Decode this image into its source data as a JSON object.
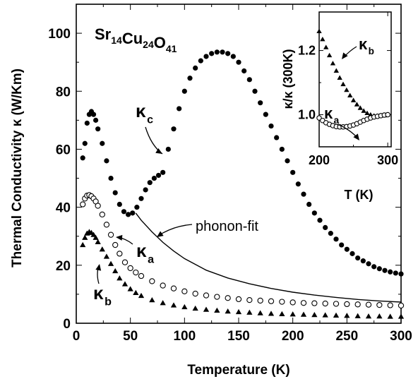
{
  "chart_data": [
    {
      "type": "scatter",
      "title": "",
      "compound": {
        "parts": [
          [
            "Sr",
            "14"
          ],
          [
            "Cu",
            "24"
          ],
          [
            "O",
            "41"
          ]
        ]
      },
      "xlabel": "Temperature (K)",
      "ylabel": "Thermal Conductivity κ (W/Km)",
      "xlim": [
        0,
        300
      ],
      "ylim": [
        0,
        110
      ],
      "xticks": [
        0,
        50,
        100,
        150,
        200,
        250,
        300
      ],
      "yticks": [
        0,
        20,
        40,
        60,
        80,
        100
      ],
      "series": [
        {
          "name": "κ_c",
          "symbol": "κ",
          "sub": "c",
          "marker": "filled-circle",
          "x": [
            6,
            8,
            10,
            12,
            14,
            16,
            18,
            20,
            24,
            28,
            32,
            36,
            40,
            44,
            48,
            52,
            56,
            60,
            64,
            68,
            72,
            76,
            80,
            85,
            90,
            95,
            100,
            105,
            110,
            115,
            120,
            125,
            130,
            135,
            140,
            145,
            150,
            155,
            160,
            165,
            170,
            175,
            180,
            185,
            190,
            195,
            200,
            205,
            210,
            215,
            220,
            225,
            230,
            235,
            240,
            245,
            250,
            255,
            260,
            265,
            270,
            275,
            280,
            285,
            290,
            295,
            300
          ],
          "y": [
            57,
            62,
            69,
            72,
            73,
            72,
            70,
            67,
            62,
            56,
            50,
            45,
            41,
            38.5,
            37.5,
            38,
            40,
            43,
            46,
            48.5,
            50,
            51,
            52,
            60,
            67,
            74,
            80,
            84.5,
            88,
            90.5,
            92,
            93,
            93.5,
            93.5,
            93,
            92,
            90,
            87,
            84,
            80,
            76,
            72,
            68,
            64,
            60,
            56,
            52,
            48,
            44.5,
            41,
            38,
            35.5,
            33,
            31,
            29,
            27,
            25.5,
            24,
            22.5,
            21.5,
            20.5,
            19.5,
            18.8,
            18.2,
            17.7,
            17.3,
            17
          ]
        },
        {
          "name": "κ_a",
          "symbol": "κ",
          "sub": "a",
          "marker": "open-circle",
          "x": [
            6,
            8,
            10,
            12,
            14,
            16,
            18,
            20,
            24,
            28,
            32,
            36,
            40,
            45,
            50,
            55,
            60,
            70,
            80,
            90,
            100,
            110,
            120,
            130,
            140,
            150,
            160,
            170,
            180,
            190,
            200,
            210,
            220,
            230,
            240,
            250,
            260,
            270,
            280,
            290,
            300
          ],
          "y": [
            41,
            43,
            44,
            44.2,
            43.8,
            43,
            42,
            40.5,
            37.5,
            34,
            30.5,
            27,
            24,
            21,
            19,
            17.5,
            16.3,
            14.5,
            13,
            12,
            11,
            10.2,
            9.6,
            9.1,
            8.7,
            8.3,
            8,
            7.8,
            7.6,
            7.4,
            7.2,
            7,
            6.9,
            6.8,
            6.7,
            6.6,
            6.5,
            6.4,
            6.3,
            6.2,
            6.1
          ]
        },
        {
          "name": "κ_b",
          "symbol": "κ",
          "sub": "b",
          "marker": "filled-triangle",
          "x": [
            6,
            8,
            10,
            12,
            14,
            16,
            18,
            20,
            24,
            28,
            32,
            36,
            40,
            45,
            50,
            55,
            60,
            70,
            80,
            90,
            100,
            110,
            120,
            130,
            140,
            150,
            160,
            170,
            180,
            190,
            200,
            210,
            220,
            230,
            240,
            250,
            260,
            270,
            280,
            290,
            300
          ],
          "y": [
            27,
            29.5,
            31,
            31.5,
            31.2,
            30.5,
            29.5,
            28,
            25.5,
            23,
            20.5,
            18,
            15.5,
            13.5,
            11.8,
            10.5,
            9.5,
            8,
            7,
            6.2,
            5.6,
            5.1,
            4.7,
            4.4,
            4.1,
            3.9,
            3.7,
            3.5,
            3.3,
            3.2,
            3.1,
            3,
            2.9,
            2.8,
            2.7,
            2.6,
            2.5,
            2.4,
            2.4,
            2.3,
            2.3
          ]
        },
        {
          "name": "phonon-fit",
          "marker": "line",
          "x": [
            55,
            60,
            70,
            80,
            90,
            100,
            120,
            140,
            160,
            180,
            200,
            220,
            240,
            260,
            280,
            300
          ],
          "y": [
            38,
            35.5,
            31.5,
            27.9,
            24.9,
            22.3,
            18.3,
            15.6,
            13.6,
            12,
            10.7,
            9.7,
            8.9,
            8.2,
            7.7,
            7.3
          ]
        }
      ],
      "annotations": [
        "phonon-fit"
      ]
    },
    {
      "type": "scatter",
      "title": "",
      "inset": true,
      "xlabel": "T (K)",
      "ylabel": "κ/κ (300K)",
      "xlim": [
        200,
        305
      ],
      "ylim": [
        0.9,
        1.32
      ],
      "xticks": [
        200,
        300
      ],
      "yticks": [
        1.0,
        1.2
      ],
      "series": [
        {
          "name": "κ_b",
          "symbol": "κ",
          "sub": "b",
          "marker": "filled-triangle",
          "x": [
            200,
            205,
            210,
            215,
            220,
            225,
            230,
            235,
            240,
            245,
            250,
            255,
            260,
            265,
            270,
            275,
            280,
            285,
            290,
            295,
            300
          ],
          "y": [
            1.26,
            1.235,
            1.21,
            1.185,
            1.16,
            1.137,
            1.115,
            1.095,
            1.077,
            1.06,
            1.045,
            1.032,
            1.021,
            1.012,
            1.005,
            1.0,
            0.997,
            0.996,
            0.997,
            0.998,
            1.0
          ]
        },
        {
          "name": "κ_a",
          "symbol": "κ",
          "sub": "a",
          "marker": "open-circle",
          "x": [
            200,
            205,
            210,
            215,
            220,
            225,
            230,
            235,
            240,
            245,
            250,
            255,
            260,
            265,
            270,
            275,
            280,
            285,
            290,
            295,
            300
          ],
          "y": [
            0.99,
            0.982,
            0.975,
            0.97,
            0.966,
            0.963,
            0.962,
            0.962,
            0.963,
            0.965,
            0.968,
            0.972,
            0.977,
            0.982,
            0.986,
            0.99,
            0.993,
            0.995,
            0.997,
            0.999,
            1.0
          ]
        }
      ]
    }
  ]
}
